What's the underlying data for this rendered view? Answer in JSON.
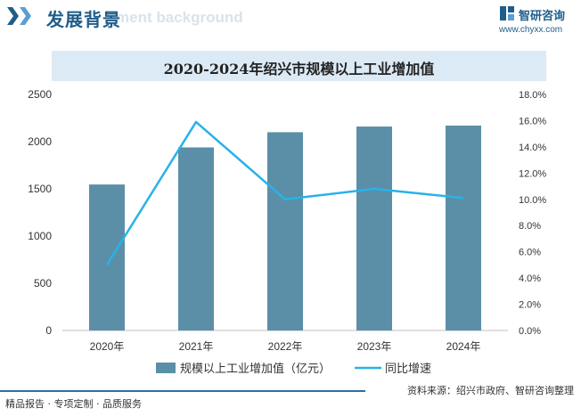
{
  "header": {
    "title": "发展背景",
    "subtitle_watermark": "ment background"
  },
  "brand": {
    "name": "智研咨询",
    "url": "www.chyxx.com"
  },
  "footer": {
    "left": "精品报告 · 专项定制 · 品质服务",
    "source": "资料来源：绍兴市政府、智研咨询整理"
  },
  "colors": {
    "bar": "#5b8fa8",
    "line": "#29b2e8",
    "header_accent": "#1f5d8a",
    "title_band": "#dceaf5"
  },
  "chart_data": {
    "type": "bar",
    "title": "2020-2024年绍兴市规模以上工业增加值",
    "categories": [
      "2020年",
      "2021年",
      "2022年",
      "2023年",
      "2024年"
    ],
    "series": [
      {
        "name": "规模以上工业增加值（亿元）",
        "type": "bar",
        "axis": "left",
        "values": [
          1546,
          1939,
          2100,
          2160,
          2170
        ]
      },
      {
        "name": "同比增速",
        "type": "line",
        "axis": "right",
        "values": [
          5.0,
          15.9,
          10.0,
          10.8,
          10.1
        ]
      }
    ],
    "y_left": {
      "min": 0,
      "max": 2500,
      "ticks": [
        "0",
        "500",
        "1000",
        "1500",
        "2000",
        "2500"
      ]
    },
    "y_right": {
      "min": 0,
      "max": 18,
      "ticks": [
        "0.0%",
        "2.0%",
        "4.0%",
        "6.0%",
        "8.0%",
        "10.0%",
        "12.0%",
        "14.0%",
        "16.0%",
        "18.0%"
      ]
    },
    "legend_position": "bottom",
    "grid": false
  }
}
